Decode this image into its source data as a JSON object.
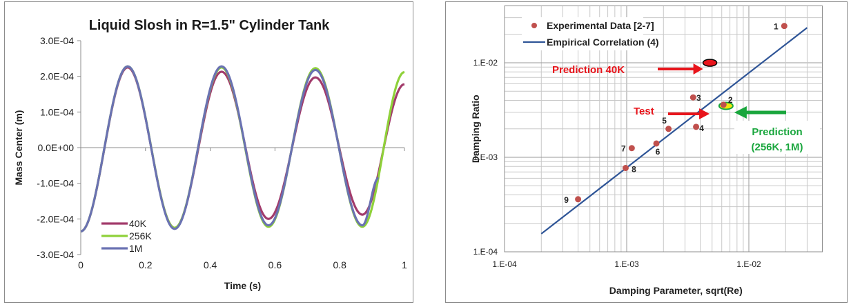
{
  "chart_data": [
    {
      "type": "line",
      "title": "Liquid Slosh in R=1.5\"  Cylinder Tank",
      "xlabel": "Time (s)",
      "ylabel": "Mass Center (m)",
      "xlim": [
        0,
        1
      ],
      "ylim": [
        -0.0003,
        0.0003
      ],
      "x_ticks": [
        0,
        0.2,
        0.4,
        0.6,
        0.8,
        1
      ],
      "x_tick_labels": [
        "0",
        "0.2",
        "0.4",
        "0.6",
        "0.8",
        "1"
      ],
      "y_ticks": [
        -0.0003,
        -0.0002,
        -0.0001,
        0,
        0.0001,
        0.0002,
        0.0003
      ],
      "y_tick_labels": [
        "-3.0E-04",
        "-2.0E-04",
        "-1.0E-04",
        "0.0E+00",
        "1.0E-04",
        "2.0E-04",
        "3.0E-04"
      ],
      "grid": false,
      "legend_position": "bottom-left",
      "series": [
        {
          "name": "40K",
          "color": "#a23b6b",
          "x": [
            0,
            0.145,
            0.29,
            0.435,
            0.58,
            0.725,
            0.87,
            1.0
          ],
          "y": [
            -0.000235,
            0.000225,
            -0.000225,
            0.000213,
            -0.0002,
            0.000197,
            -0.000188,
            0.000178
          ]
        },
        {
          "name": "256K",
          "color": "#8fd13a",
          "x": [
            0,
            0.145,
            0.29,
            0.435,
            0.58,
            0.725,
            0.87,
            1.0
          ],
          "y": [
            -0.000235,
            0.000228,
            -0.000225,
            0.000225,
            -0.000222,
            0.000223,
            -0.000222,
            0.000212
          ]
        },
        {
          "name": "1M",
          "color": "#6a72b2",
          "x": [
            0,
            0.145,
            0.29,
            0.435,
            0.58,
            0.725,
            0.87,
            0.92
          ],
          "y": [
            -0.000235,
            0.000228,
            -0.000228,
            0.000228,
            -0.000218,
            0.000218,
            -0.000218,
            -8.5e-05
          ]
        }
      ]
    },
    {
      "type": "scatter",
      "title": "",
      "xlabel": "Damping Parameter, sqrt(Re)",
      "ylabel": "Damping Ratio",
      "x_scale": "log",
      "y_scale": "log",
      "xlim": [
        0.0001,
        0.04
      ],
      "ylim": [
        0.0001,
        0.04
      ],
      "x_ticks": [
        0.0001,
        0.001,
        0.01
      ],
      "x_tick_labels": [
        "1.E-04",
        "1.E-03",
        "1.E-02"
      ],
      "y_ticks": [
        0.0001,
        0.001,
        0.01
      ],
      "y_tick_labels": [
        "1.E-04",
        "1.E-03",
        "1.E-02"
      ],
      "grid": true,
      "legend_position": "top-left",
      "series": [
        {
          "name": "Experimental Data [2-7]",
          "color": "#c0504d",
          "points": [
            {
              "label": "1",
              "x": 0.0195,
              "y": 0.0245
            },
            {
              "label": "2",
              "x": 0.0062,
              "y": 0.0036
            },
            {
              "label": "3",
              "x": 0.0035,
              "y": 0.0043
            },
            {
              "label": "4",
              "x": 0.0037,
              "y": 0.0021
            },
            {
              "label": "5",
              "x": 0.0022,
              "y": 0.002
            },
            {
              "label": "6",
              "x": 0.00175,
              "y": 0.0014
            },
            {
              "label": "7",
              "x": 0.0011,
              "y": 0.00125
            },
            {
              "label": "8",
              "x": 0.00098,
              "y": 0.00077
            },
            {
              "label": "9",
              "x": 0.0004,
              "y": 0.00036
            }
          ]
        },
        {
          "name": "Empirical Correlation (4)",
          "color": "#2f5597",
          "x": [
            0.0002,
            0.03
          ],
          "y": [
            0.000155,
            0.0235
          ]
        }
      ],
      "annotations": [
        {
          "text": "Prediction 40K",
          "color": "#e8141b",
          "x": 0.0048,
          "y": 0.01
        },
        {
          "text": "Test",
          "color": "#e8141b",
          "x": 0.0055,
          "y": 0.0035
        },
        {
          "text": "Prediction",
          "text2": "(256K, 1M)",
          "color": "#19a63d",
          "x": 0.0065,
          "y": 0.0035
        }
      ]
    }
  ]
}
